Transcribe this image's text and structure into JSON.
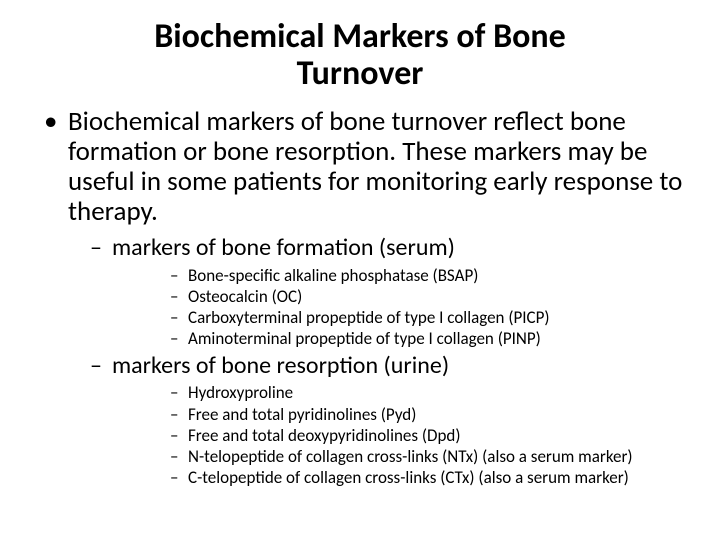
{
  "title": "Biochemical Markers of Bone Turnover",
  "intro": "Biochemical markers of bone turnover reflect bone formation or bone resorption. These markers may be useful in some patients for monitoring early response to therapy.",
  "sections": [
    {
      "heading": "markers of bone formation (serum)",
      "items": [
        "Bone-specific alkaline phosphatase (BSAP)",
        "Osteocalcin (OC)",
        "Carboxyterminal propeptide of type I collagen (PICP)",
        "Aminoterminal propeptide of type I collagen (PINP)"
      ]
    },
    {
      "heading": "markers of bone resorption (urine)",
      "items": [
        "Hydroxyproline",
        "Free and total pyridinolines (Pyd)",
        "Free and total deoxypyridinolines (Dpd)",
        "N-telopeptide of collagen cross-links (NTx) (also a serum marker)",
        "C-telopeptide of collagen cross-links (CTx) (also a serum marker)"
      ]
    }
  ],
  "style": {
    "background_color": "#ffffff",
    "text_color": "#000000",
    "title_fontsize": 34,
    "title_weight": 700,
    "level1_fontsize": 27,
    "level2_fontsize": 24,
    "level3_fontsize": 17,
    "font_family": "Calibri"
  }
}
